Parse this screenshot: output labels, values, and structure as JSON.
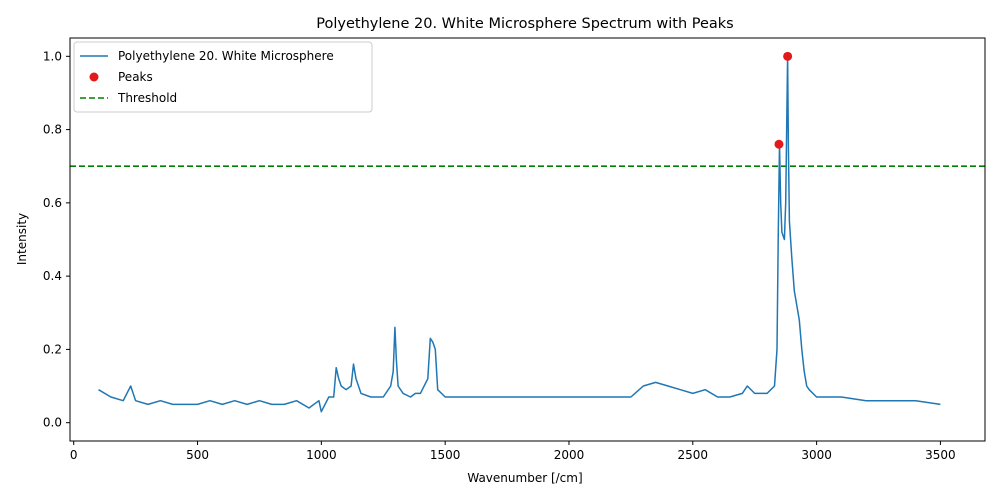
{
  "chart_data": {
    "type": "line",
    "title": "Polyethylene 20. White Microsphere Spectrum with Peaks",
    "xlabel": "Wavenumber [/cm]",
    "ylabel": "Intensity",
    "xlim": [
      -15,
      3680
    ],
    "ylim": [
      -0.05,
      1.05
    ],
    "xticks": [
      0,
      500,
      1000,
      1500,
      2000,
      2500,
      3000,
      3500
    ],
    "yticks": [
      0.0,
      0.2,
      0.4,
      0.6,
      0.8,
      1.0
    ],
    "xtick_labels": [
      "0",
      "500",
      "1000",
      "1500",
      "2000",
      "2500",
      "3000",
      "3500"
    ],
    "ytick_labels": [
      "0.0",
      "0.2",
      "0.4",
      "0.6",
      "0.8",
      "1.0"
    ],
    "grid": false,
    "legend_position": "top-left",
    "series": [
      {
        "name": "Polyethylene 20. White Microsphere",
        "color": "#1f77b4",
        "style": "solid",
        "x": [
          100,
          150,
          200,
          230,
          250,
          300,
          350,
          400,
          450,
          500,
          550,
          600,
          650,
          700,
          750,
          800,
          850,
          900,
          950,
          990,
          1000,
          1030,
          1050,
          1060,
          1070,
          1080,
          1100,
          1120,
          1130,
          1140,
          1160,
          1200,
          1250,
          1280,
          1290,
          1297,
          1303,
          1310,
          1330,
          1360,
          1380,
          1400,
          1430,
          1440,
          1450,
          1460,
          1470,
          1500,
          1550,
          1600,
          1700,
          1800,
          1900,
          2000,
          2100,
          2200,
          2250,
          2300,
          2350,
          2400,
          2450,
          2500,
          2550,
          2600,
          2650,
          2700,
          2720,
          2750,
          2800,
          2830,
          2840,
          2845,
          2850,
          2855,
          2860,
          2870,
          2875,
          2880,
          2883,
          2886,
          2890,
          2900,
          2910,
          2920,
          2930,
          2940,
          2950,
          2960,
          2970,
          3000,
          3050,
          3100,
          3200,
          3300,
          3400,
          3500
        ],
        "y": [
          0.09,
          0.07,
          0.06,
          0.1,
          0.06,
          0.05,
          0.06,
          0.05,
          0.05,
          0.05,
          0.06,
          0.05,
          0.06,
          0.05,
          0.06,
          0.05,
          0.05,
          0.06,
          0.04,
          0.06,
          0.03,
          0.07,
          0.07,
          0.15,
          0.12,
          0.1,
          0.09,
          0.1,
          0.16,
          0.12,
          0.08,
          0.07,
          0.07,
          0.1,
          0.14,
          0.26,
          0.17,
          0.1,
          0.08,
          0.07,
          0.08,
          0.08,
          0.12,
          0.23,
          0.22,
          0.2,
          0.09,
          0.07,
          0.07,
          0.07,
          0.07,
          0.07,
          0.07,
          0.07,
          0.07,
          0.07,
          0.07,
          0.1,
          0.11,
          0.1,
          0.09,
          0.08,
          0.09,
          0.07,
          0.07,
          0.08,
          0.1,
          0.08,
          0.08,
          0.1,
          0.2,
          0.5,
          0.76,
          0.6,
          0.52,
          0.5,
          0.6,
          0.85,
          1.0,
          0.75,
          0.55,
          0.45,
          0.36,
          0.32,
          0.28,
          0.2,
          0.14,
          0.1,
          0.09,
          0.07,
          0.07,
          0.07,
          0.06,
          0.06,
          0.06,
          0.05
        ]
      },
      {
        "name": "Peaks",
        "color": "#e31a1c",
        "style": "markers",
        "x": [
          2848,
          2883
        ],
        "y": [
          0.76,
          1.0
        ]
      },
      {
        "name": "Threshold",
        "color": "#008000",
        "style": "dashed",
        "y_constant": 0.7
      }
    ]
  }
}
